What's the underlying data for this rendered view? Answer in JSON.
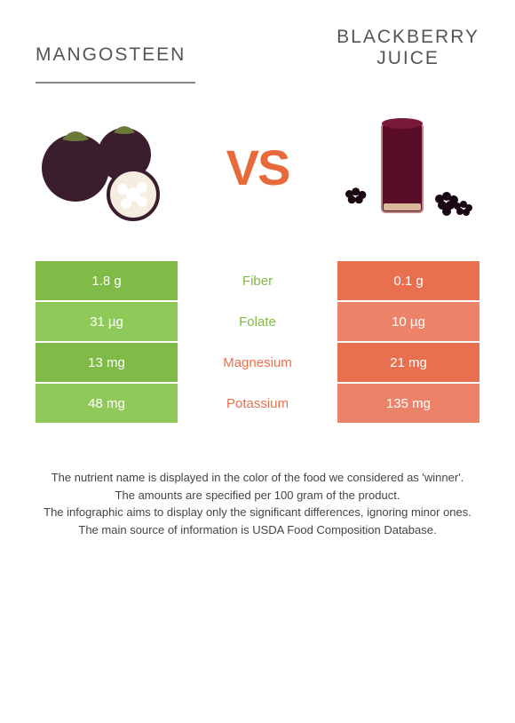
{
  "header": {
    "left_title": "MANGOSTEEN",
    "right_title_line1": "BLACKBERRY",
    "right_title_line2": "JUICE"
  },
  "vs_label": "VS",
  "colors": {
    "left_food": "#7fbb46",
    "right_food": "#e8704f",
    "left_food_alt": "#8fc95a",
    "right_food_alt": "#ec8368",
    "vs_color": "#e86a3a"
  },
  "rows": [
    {
      "nutrient": "Fiber",
      "left": "1.8 g",
      "right": "0.1 g",
      "winner": "left",
      "shade": 0
    },
    {
      "nutrient": "Folate",
      "left": "31 µg",
      "right": "10 µg",
      "winner": "left",
      "shade": 1
    },
    {
      "nutrient": "Magnesium",
      "left": "13 mg",
      "right": "21 mg",
      "winner": "right",
      "shade": 0
    },
    {
      "nutrient": "Potassium",
      "left": "48 mg",
      "right": "135 mg",
      "winner": "right",
      "shade": 1
    }
  ],
  "footer_lines": [
    "The nutrient name is displayed in the color of the food we considered as 'winner'.",
    "The amounts are specified per 100 gram of the product.",
    "The infographic aims to display only the significant differences, ignoring minor ones.",
    "The main source of information is USDA Food Composition Database."
  ]
}
